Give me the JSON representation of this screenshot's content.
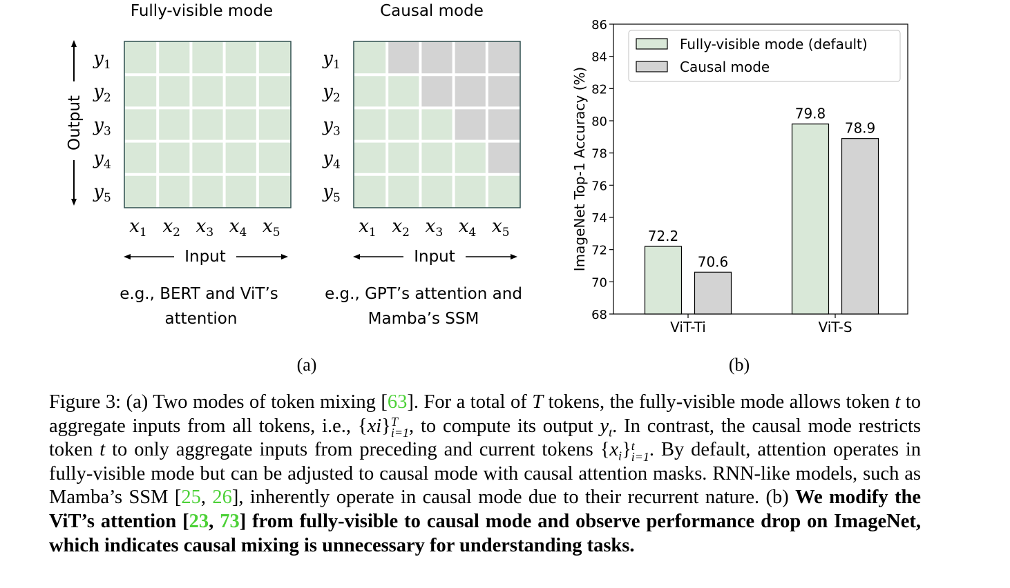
{
  "panel_a": {
    "left": {
      "title": "Fully-visible mode",
      "caption_line1": "e.g., BERT and ViT’s",
      "caption_line2": "attention",
      "mask": "full"
    },
    "right": {
      "title": "Causal mode",
      "caption_line1": "e.g., GPT’s attention and",
      "caption_line2": "Mamba’s SSM",
      "mask": "causal"
    },
    "output_label": "Output",
    "input_label": "Input",
    "y_labels": [
      "y",
      "y",
      "y",
      "y",
      "y"
    ],
    "y_subs": [
      "1",
      "2",
      "3",
      "4",
      "5"
    ],
    "x_labels": [
      "x",
      "x",
      "x",
      "x",
      "x"
    ],
    "x_subs": [
      "1",
      "2",
      "3",
      "4",
      "5"
    ],
    "colors": {
      "visible": "#d9e8d8",
      "masked": "#d3d3d3",
      "grid": "#ffffff",
      "border": "#2f4f4f"
    }
  },
  "panel_b": {
    "label": "(b)"
  },
  "panel_a_label": "(a)",
  "chart_data": {
    "type": "bar",
    "categories": [
      "ViT-Ti",
      "ViT-S"
    ],
    "series": [
      {
        "name": "Fully-visible mode (default)",
        "values": [
          72.2,
          79.8
        ],
        "color": "#d9e8d8"
      },
      {
        "name": "Causal mode",
        "values": [
          70.6,
          78.9
        ],
        "color": "#d3d3d3"
      }
    ],
    "value_labels": [
      [
        "72.2",
        "79.8"
      ],
      [
        "70.6",
        "78.9"
      ]
    ],
    "ylabel": "ImageNet Top-1 Accuracy (%)",
    "xlabel": "",
    "ylim": [
      68,
      86
    ],
    "yticks": [
      68,
      70,
      72,
      74,
      76,
      78,
      80,
      82,
      84,
      86
    ],
    "legend_position": "top-right",
    "grid": false
  },
  "caption": {
    "figure_label": "Figure 3:",
    "part_a_label": "(a)",
    "s1": "Two modes of token mixing [",
    "ref63": "63",
    "s2": "]. For a total of ",
    "T": "T",
    "s3": " tokens, the fully-visible mode allows token ",
    "t1": "t",
    "s4": " to aggregate inputs from all tokens, i.e., {",
    "xi": "xi",
    "s5": "}",
    "sup1": "T",
    "sub1": "i=1",
    "s6": ", to compute its output ",
    "yt_y": "y",
    "yt_t": "t",
    "s7": ". In contrast, the causal mode restricts token ",
    "t2": "t",
    "s8": " to only aggregate inputs from preceding and current tokens {",
    "x2": "x",
    "x2sub": "i",
    "s9": "}",
    "sup2": "t",
    "sub2": "i=1",
    "s10": ". By default, attention operates in fully-visible mode but can be adjusted to causal mode with causal attention masks. RNN-like models, such as Mamba’s SSM [",
    "ref25": "25",
    "comma1": ", ",
    "ref26": "26",
    "s11": "], inherently operate in causal mode due to their recurrent nature. ",
    "part_b_label": "(b)",
    "b1": "We modify the ViT’s attention [",
    "ref23": "23",
    "comma2": ", ",
    "ref73": "73",
    "b2": "] from fully-visible to causal mode and observe performance drop on ImageNet, which indicates causal mixing is unnecessary for understanding tasks."
  }
}
